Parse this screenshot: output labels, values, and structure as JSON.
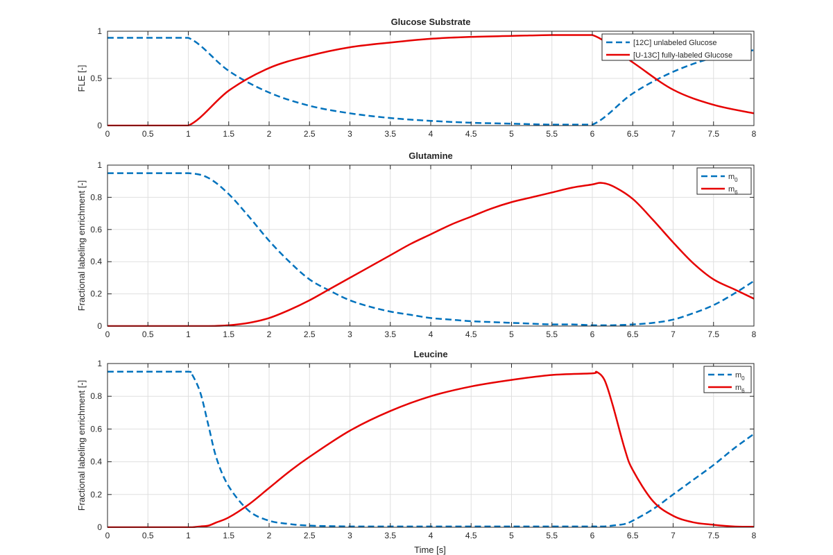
{
  "figure": {
    "xlabel": "Time [s]"
  },
  "colors": {
    "dashed": "#0072bd",
    "solid": "#e60000"
  },
  "chart_data": [
    {
      "type": "line",
      "title": "Glucose Substrate",
      "xlabel": "",
      "ylabel": "FLE [-]",
      "xlim": [
        0,
        8
      ],
      "ylim": [
        0,
        1
      ],
      "xticks": [
        "0",
        "0.5",
        "1",
        "1.5",
        "2",
        "2.5",
        "3",
        "3.5",
        "4",
        "4.5",
        "5",
        "5.5",
        "6",
        "6.5",
        "7",
        "7.5",
        "8"
      ],
      "yticks": [
        "0",
        "0.5",
        "1"
      ],
      "grid": true,
      "legend_position": "top-right",
      "x": [
        0,
        0.5,
        1,
        1.5,
        2,
        2.5,
        3,
        3.5,
        4,
        4.5,
        5,
        5.5,
        6,
        6.5,
        7,
        7.5,
        8
      ],
      "series": [
        {
          "name": "[12C] unlabeled Glucose",
          "sub": "",
          "style": "dashed",
          "values": [
            0.93,
            0.93,
            0.93,
            0.58,
            0.35,
            0.21,
            0.13,
            0.08,
            0.05,
            0.03,
            0.02,
            0.01,
            0.01,
            0.34,
            0.57,
            0.72,
            0.8
          ]
        },
        {
          "name": "[U-13C] fully-labeled Glucose",
          "sub": "",
          "style": "solid",
          "values": [
            0,
            0,
            0,
            0.37,
            0.61,
            0.74,
            0.83,
            0.88,
            0.92,
            0.94,
            0.95,
            0.96,
            0.96,
            0.67,
            0.38,
            0.22,
            0.13
          ]
        }
      ]
    },
    {
      "type": "line",
      "title": "Glutamine",
      "xlabel": "",
      "ylabel": "Fractional labeling enrichment [-]",
      "xlim": [
        0,
        8
      ],
      "ylim": [
        0,
        1
      ],
      "xticks": [
        "0",
        "0.5",
        "1",
        "1.5",
        "2",
        "2.5",
        "3",
        "3.5",
        "4",
        "4.5",
        "5",
        "5.5",
        "6",
        "6.5",
        "7",
        "7.5",
        "8"
      ],
      "yticks": [
        "0",
        "0.2",
        "0.4",
        "0.6",
        "0.8",
        "1"
      ],
      "grid": true,
      "legend_position": "top-right",
      "x": [
        0,
        0.5,
        1,
        1.25,
        1.5,
        1.75,
        2,
        2.25,
        2.5,
        2.75,
        3,
        3.25,
        3.5,
        3.75,
        4,
        4.25,
        4.5,
        4.75,
        5,
        5.25,
        5.5,
        5.75,
        6,
        6.1,
        6.25,
        6.5,
        6.75,
        7,
        7.25,
        7.5,
        7.75,
        8
      ],
      "series": [
        {
          "name": "m",
          "sub": "0",
          "style": "dashed",
          "values": [
            0.95,
            0.95,
            0.95,
            0.92,
            0.82,
            0.68,
            0.53,
            0.4,
            0.29,
            0.22,
            0.16,
            0.12,
            0.09,
            0.07,
            0.05,
            0.04,
            0.03,
            0.025,
            0.02,
            0.015,
            0.01,
            0.01,
            0.005,
            0.005,
            0.005,
            0.01,
            0.02,
            0.04,
            0.08,
            0.13,
            0.2,
            0.28
          ]
        },
        {
          "name": "m",
          "sub": "6",
          "style": "solid",
          "values": [
            0,
            0,
            0,
            0,
            0.005,
            0.02,
            0.05,
            0.1,
            0.16,
            0.23,
            0.3,
            0.37,
            0.44,
            0.51,
            0.57,
            0.63,
            0.68,
            0.73,
            0.77,
            0.8,
            0.83,
            0.86,
            0.88,
            0.89,
            0.87,
            0.79,
            0.66,
            0.52,
            0.39,
            0.29,
            0.23,
            0.17
          ]
        }
      ]
    },
    {
      "type": "line",
      "title": "Leucine",
      "xlabel": "Time [s]",
      "ylabel": "Fractional labeling enrichment [-]",
      "xlim": [
        0,
        8
      ],
      "ylim": [
        0,
        1
      ],
      "xticks": [
        "0",
        "0.5",
        "1",
        "1.5",
        "2",
        "2.5",
        "3",
        "3.5",
        "4",
        "4.5",
        "5",
        "5.5",
        "6",
        "6.5",
        "7",
        "7.5",
        "8"
      ],
      "yticks": [
        "0",
        "0.2",
        "0.4",
        "0.6",
        "0.8",
        "1"
      ],
      "grid": true,
      "legend_position": "top-right",
      "x": [
        0,
        0.5,
        1,
        1.05,
        1.15,
        1.25,
        1.35,
        1.5,
        1.75,
        2,
        2.25,
        2.5,
        3,
        3.5,
        4,
        4.5,
        5,
        5.5,
        6,
        6.05,
        6.15,
        6.25,
        6.4,
        6.5,
        6.75,
        7,
        7.25,
        7.5,
        7.75,
        8
      ],
      "series": [
        {
          "name": "m",
          "sub": "0",
          "style": "dashed",
          "values": [
            0.95,
            0.95,
            0.95,
            0.93,
            0.82,
            0.62,
            0.42,
            0.25,
            0.1,
            0.04,
            0.02,
            0.01,
            0.005,
            0.005,
            0.005,
            0.005,
            0.005,
            0.005,
            0.005,
            0.005,
            0.005,
            0.01,
            0.02,
            0.04,
            0.11,
            0.2,
            0.29,
            0.38,
            0.48,
            0.57
          ]
        },
        {
          "name": "m",
          "sub": "6",
          "style": "solid",
          "values": [
            0,
            0,
            0,
            0,
            0.005,
            0.01,
            0.03,
            0.06,
            0.14,
            0.24,
            0.34,
            0.43,
            0.59,
            0.71,
            0.8,
            0.86,
            0.9,
            0.93,
            0.94,
            0.95,
            0.9,
            0.75,
            0.48,
            0.35,
            0.16,
            0.07,
            0.03,
            0.015,
            0.005,
            0.003
          ]
        }
      ]
    }
  ]
}
